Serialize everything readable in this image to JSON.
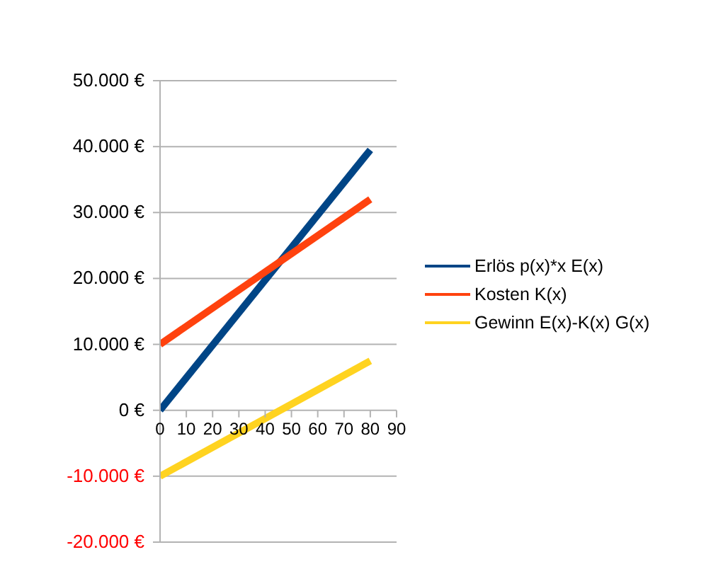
{
  "chart_data": {
    "type": "line",
    "x": [
      0,
      80
    ],
    "series": [
      {
        "name": "Erlös p(x)*x E(x)",
        "color": "#004586",
        "values": [
          0,
          39500
        ]
      },
      {
        "name": "Kosten  K(x)",
        "color": "#ff420e",
        "values": [
          10000,
          32000
        ]
      },
      {
        "name": "Gewinn E(x)-K(x) G(x)",
        "color": "#ffd320",
        "values": [
          -10000,
          7500
        ]
      }
    ],
    "xlim": [
      0,
      90
    ],
    "xticks": [
      0,
      10,
      20,
      30,
      40,
      50,
      60,
      70,
      80,
      90
    ],
    "ylim": [
      -20000,
      50000
    ],
    "yticks": [
      {
        "value": -20000,
        "label": "-20.000 €"
      },
      {
        "value": -10000,
        "label": "-10.000 €"
      },
      {
        "value": 0,
        "label": "0 €"
      },
      {
        "value": 10000,
        "label": "10.000 €"
      },
      {
        "value": 20000,
        "label": "20.000 €"
      },
      {
        "value": 30000,
        "label": "30.000 €"
      },
      {
        "value": 40000,
        "label": "40.000 €"
      },
      {
        "value": 50000,
        "label": "50.000 €"
      }
    ],
    "grid": "y",
    "legend": "right",
    "marker": "none",
    "line_style": "solid"
  }
}
